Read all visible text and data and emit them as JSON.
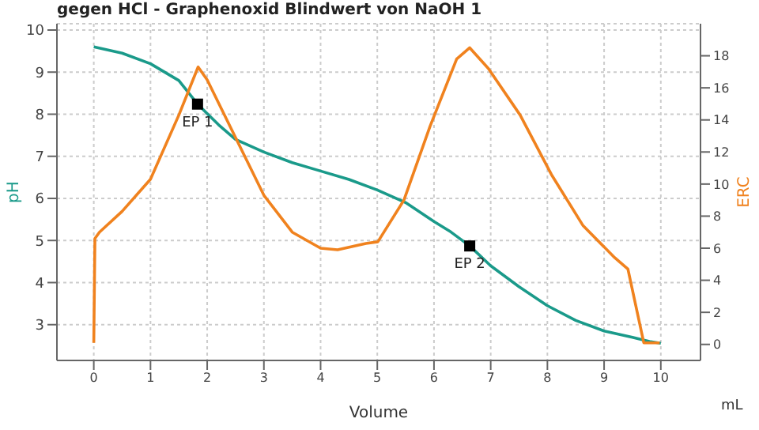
{
  "chart_data": {
    "type": "line",
    "title": "gegen HCl - Graphenoxid Blindwert von NaOH  1",
    "xlabel": "Volume",
    "ylabel": "pH",
    "y2label": "ERC",
    "xlim": [
      -0.65,
      10.7
    ],
    "xticks": [
      0,
      1,
      2,
      3,
      4,
      5,
      6,
      7,
      8,
      9,
      10
    ],
    "ylim": [
      2.15,
      10.15
    ],
    "yticks": [
      3,
      4,
      5,
      6,
      7,
      8,
      9,
      10
    ],
    "y2lim": [
      -1,
      20
    ],
    "y2ticks": [
      0,
      2,
      4,
      6,
      8,
      10,
      12,
      14,
      16,
      18
    ],
    "grid": true,
    "marker": "none",
    "line_style": "solid",
    "series": [
      {
        "color": "#1a9a8a",
        "x": [
          0,
          0.5,
          1,
          1.5,
          1.83,
          2.2,
          2.5,
          3,
          3.5,
          4,
          4.5,
          5,
          5.5,
          6,
          6.3,
          6.63,
          7,
          7.5,
          8,
          8.5,
          9,
          9.5,
          9.8,
          10
        ],
        "values": [
          9.6,
          9.45,
          9.2,
          8.8,
          8.24,
          7.75,
          7.4,
          7.1,
          6.85,
          6.65,
          6.45,
          6.2,
          5.9,
          5.45,
          5.2,
          4.87,
          4.4,
          3.9,
          3.45,
          3.1,
          2.85,
          2.7,
          2.6,
          2.56
        ]
      },
      {
        "color": "#f0821e",
        "axis": "y2",
        "x": [
          0,
          0.02,
          0.1,
          0.5,
          1,
          1.5,
          1.84,
          2,
          2.5,
          3,
          3.5,
          4,
          4.3,
          4.8,
          5.01,
          5.47,
          5.93,
          6.4,
          6.63,
          6.96,
          7.52,
          8.07,
          8.63,
          9.19,
          9.42,
          9.7,
          9.98
        ],
        "values": [
          0.1,
          6.6,
          7.0,
          8.3,
          10.3,
          14.3,
          17.3,
          16.5,
          12.9,
          9.3,
          7.0,
          6.0,
          5.9,
          6.3,
          6.4,
          9.0,
          13.6,
          17.8,
          18.5,
          17.2,
          14.3,
          10.6,
          7.4,
          5.4,
          4.7,
          0.1,
          0.1
        ]
      }
    ],
    "annotations": [
      {
        "text": "EP 1",
        "x": 1.83,
        "y": 8.24
      },
      {
        "text": "EP 2",
        "x": 6.63,
        "y": 4.87
      },
      "mL"
    ]
  }
}
